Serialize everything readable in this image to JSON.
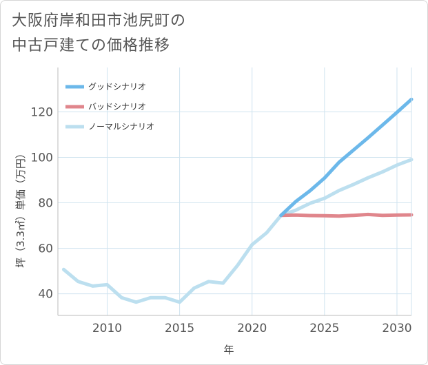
{
  "title_line1": "大阪府岸和田市池尻町の",
  "title_line2": "中古戸建ての価格推移",
  "chart_data": {
    "type": "line",
    "xlabel": "年",
    "ylabel": "坪（3.3㎡）単価（万円）",
    "xlim": [
      2006.6,
      2031
    ],
    "ylim": [
      30.5,
      139.5
    ],
    "xticks": [
      2010,
      2015,
      2020,
      2025,
      2030
    ],
    "yticks": [
      40,
      60,
      80,
      100,
      120
    ],
    "grid": true,
    "legend_position": "top-left",
    "series": [
      {
        "name": "グッドシナリオ",
        "color": "#6cb8ea",
        "x": [
          2022,
          2023,
          2024,
          2025,
          2026,
          2027,
          2028,
          2029,
          2030,
          2031
        ],
        "y": [
          74.5,
          80.5,
          85.3,
          90.9,
          97.8,
          103.2,
          108.6,
          114.2,
          119.8,
          125.5
        ]
      },
      {
        "name": "バッドシナリオ",
        "color": "#e0868c",
        "x": [
          2022,
          2023,
          2024,
          2025,
          2026,
          2027,
          2028,
          2029,
          2030,
          2031
        ],
        "y": [
          74.5,
          74.6,
          74.4,
          74.3,
          74.2,
          74.5,
          74.9,
          74.5,
          74.6,
          74.7
        ]
      },
      {
        "name": "ノーマルシナリオ",
        "color": "#bcdfef",
        "x": [
          2007,
          2008,
          2009,
          2010,
          2011,
          2012,
          2013,
          2014,
          2015,
          2016,
          2017,
          2018,
          2019,
          2020,
          2021,
          2022,
          2023,
          2024,
          2025,
          2026,
          2027,
          2028,
          2029,
          2030,
          2031
        ],
        "y": [
          50.7,
          45.4,
          43.4,
          44.0,
          38.3,
          36.3,
          38.3,
          38.3,
          36.3,
          42.5,
          45.4,
          44.7,
          52.5,
          61.6,
          66.8,
          74.5,
          76.7,
          79.8,
          82.0,
          85.4,
          88.1,
          91.0,
          93.6,
          96.6,
          99.0
        ]
      }
    ]
  }
}
